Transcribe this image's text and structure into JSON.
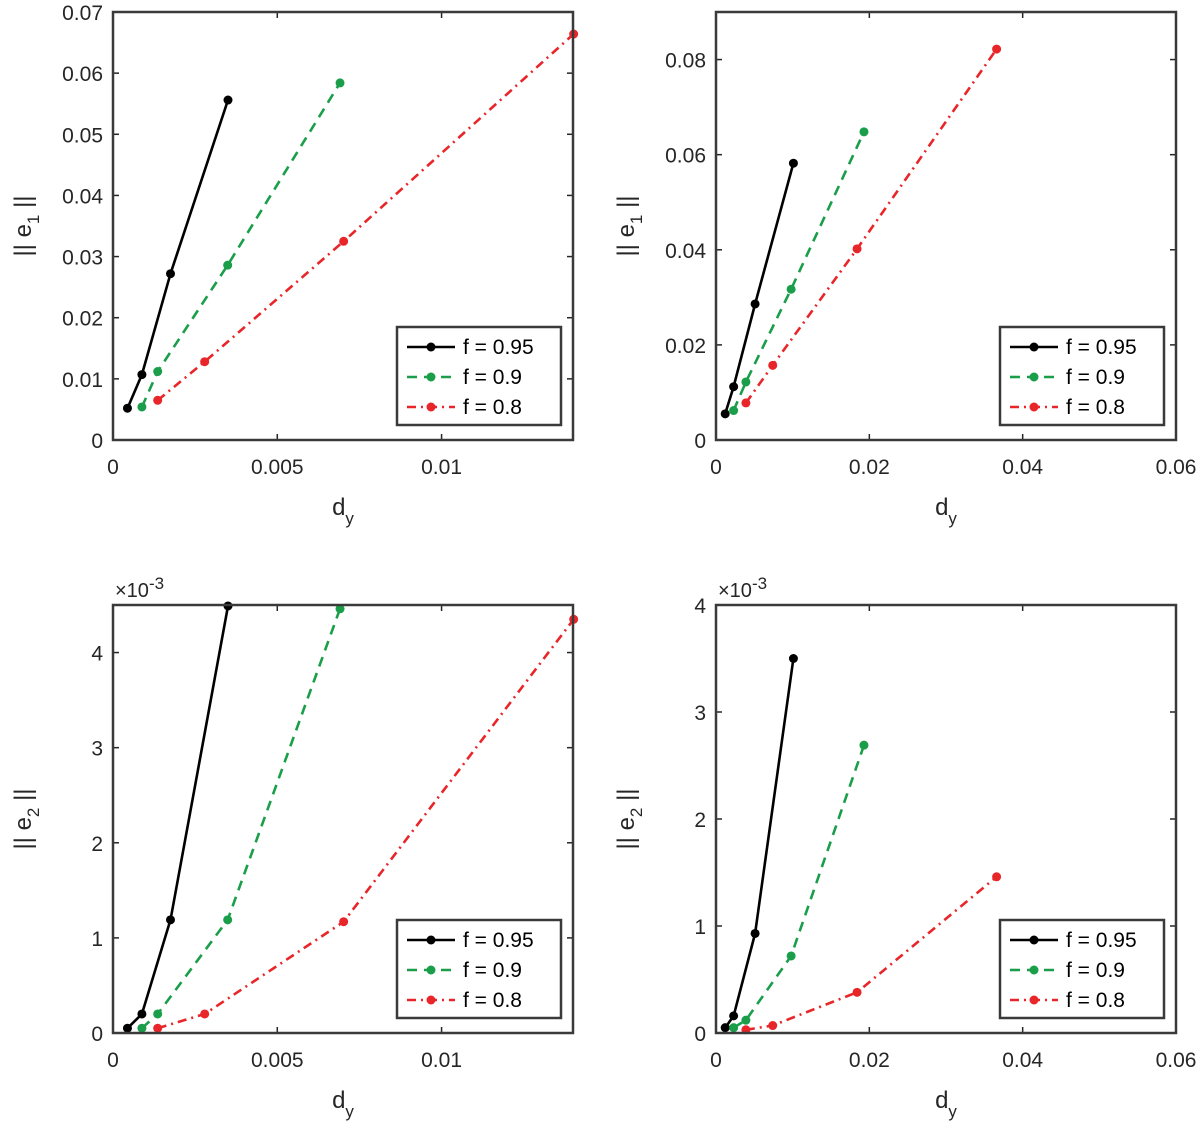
{
  "chart_data": [
    {
      "type": "line",
      "xlabel": "d",
      "xlabel_sub": "y",
      "ylabel_prefix": "|| e",
      "ylabel_sub": "1",
      "ylabel_suffix": " ||",
      "xlim": [
        0,
        0.014
      ],
      "ylim": [
        0,
        0.07
      ],
      "xticks": [
        0,
        0.005,
        0.01
      ],
      "xtick_labels": [
        "0",
        "0.005",
        "0.01"
      ],
      "yticks": [
        0,
        0.01,
        0.02,
        0.03,
        0.04,
        0.05,
        0.06,
        0.07
      ],
      "ytick_labels": [
        "0",
        "0.01",
        "0.02",
        "0.03",
        "0.04",
        "0.05",
        "0.06",
        "0.07"
      ],
      "y_exponent_label": "",
      "legend_position": "bottom-right",
      "series": [
        {
          "name": "f = 0.95",
          "color": "#000000",
          "dash": "solid",
          "x": [
            0.00044,
            0.00088,
            0.00175,
            0.0035
          ],
          "y": [
            0.0052,
            0.0107,
            0.0272,
            0.0556
          ]
        },
        {
          "name": "f = 0.9",
          "color": "#1a9e4a",
          "dash": "dashed",
          "x": [
            0.00088,
            0.00136,
            0.00349,
            0.00691
          ],
          "y": [
            0.0054,
            0.0112,
            0.0286,
            0.0584
          ]
        },
        {
          "name": "f = 0.8",
          "color": "#e8262a",
          "dash": "dashdot",
          "x": [
            0.00136,
            0.00279,
            0.00702,
            0.01402
          ],
          "y": [
            0.0065,
            0.0128,
            0.0325,
            0.0664
          ]
        }
      ]
    },
    {
      "type": "line",
      "xlabel": "d",
      "xlabel_sub": "y",
      "ylabel_prefix": "|| e",
      "ylabel_sub": "1",
      "ylabel_suffix": " ||",
      "xlim": [
        0,
        0.06
      ],
      "ylim": [
        0,
        0.09
      ],
      "xticks": [
        0,
        0.02,
        0.04,
        0.06
      ],
      "xtick_labels": [
        "0",
        "0.02",
        "0.04",
        "0.06"
      ],
      "yticks": [
        0,
        0.02,
        0.04,
        0.06,
        0.08
      ],
      "ytick_labels": [
        "0",
        "0.02",
        "0.04",
        "0.06",
        "0.08"
      ],
      "y_exponent_label": "",
      "legend_position": "bottom-right",
      "series": [
        {
          "name": "f = 0.95",
          "color": "#000000",
          "dash": "solid",
          "x": [
            0.0012,
            0.0023,
            0.0051,
            0.0101
          ],
          "y": [
            0.0055,
            0.0112,
            0.0286,
            0.0582
          ]
        },
        {
          "name": "f = 0.9",
          "color": "#1a9e4a",
          "dash": "dashed",
          "x": [
            0.0023,
            0.0039,
            0.0098,
            0.0193
          ],
          "y": [
            0.0062,
            0.0122,
            0.0317,
            0.0648
          ]
        },
        {
          "name": "f = 0.8",
          "color": "#e8262a",
          "dash": "dashdot",
          "x": [
            0.0039,
            0.0074,
            0.0184,
            0.0366
          ],
          "y": [
            0.0078,
            0.0157,
            0.0402,
            0.0822
          ]
        }
      ]
    },
    {
      "type": "line",
      "xlabel": "d",
      "xlabel_sub": "y",
      "ylabel_prefix": "|| e",
      "ylabel_sub": "2",
      "ylabel_suffix": " ||",
      "xlim": [
        0,
        0.014
      ],
      "ylim": [
        0,
        4.5
      ],
      "xticks": [
        0,
        0.005,
        0.01
      ],
      "xtick_labels": [
        "0",
        "0.005",
        "0.01"
      ],
      "yticks": [
        0,
        1,
        2,
        3,
        4
      ],
      "ytick_labels": [
        "0",
        "1",
        "2",
        "3",
        "4"
      ],
      "y_exponent_label": "×10",
      "y_exponent_power": "-3",
      "legend_position": "bottom-right",
      "series": [
        {
          "name": "f = 0.95",
          "color": "#000000",
          "dash": "solid",
          "x": [
            0.00044,
            0.00088,
            0.00175,
            0.0035
          ],
          "y": [
            0.05,
            0.2,
            1.19,
            4.49
          ]
        },
        {
          "name": "f = 0.9",
          "color": "#1a9e4a",
          "dash": "dashed",
          "x": [
            0.00088,
            0.00136,
            0.00349,
            0.00691
          ],
          "y": [
            0.05,
            0.2,
            1.19,
            4.46
          ]
        },
        {
          "name": "f = 0.8",
          "color": "#e8262a",
          "dash": "dashdot",
          "x": [
            0.00136,
            0.00279,
            0.00702,
            0.01402
          ],
          "y": [
            0.05,
            0.2,
            1.17,
            4.35
          ]
        }
      ]
    },
    {
      "type": "line",
      "xlabel": "d",
      "xlabel_sub": "y",
      "ylabel_prefix": "|| e",
      "ylabel_sub": "2",
      "ylabel_suffix": " ||",
      "xlim": [
        0,
        0.06
      ],
      "ylim": [
        0,
        4
      ],
      "xticks": [
        0,
        0.02,
        0.04,
        0.06
      ],
      "xtick_labels": [
        "0",
        "0.02",
        "0.04",
        "0.06"
      ],
      "yticks": [
        0,
        1,
        2,
        3,
        4
      ],
      "ytick_labels": [
        "0",
        "1",
        "2",
        "3",
        "4"
      ],
      "y_exponent_label": "×10",
      "y_exponent_power": "-3",
      "legend_position": "bottom-right",
      "series": [
        {
          "name": "f = 0.95",
          "color": "#000000",
          "dash": "solid",
          "x": [
            0.0012,
            0.0023,
            0.0051,
            0.0101
          ],
          "y": [
            0.05,
            0.16,
            0.93,
            3.5
          ]
        },
        {
          "name": "f = 0.9",
          "color": "#1a9e4a",
          "dash": "dashed",
          "x": [
            0.0023,
            0.0039,
            0.0098,
            0.0193
          ],
          "y": [
            0.05,
            0.12,
            0.72,
            2.69
          ]
        },
        {
          "name": "f = 0.8",
          "color": "#e8262a",
          "dash": "dashdot",
          "x": [
            0.0039,
            0.0074,
            0.0184,
            0.0366
          ],
          "y": [
            0.03,
            0.07,
            0.38,
            1.46
          ]
        }
      ]
    }
  ]
}
